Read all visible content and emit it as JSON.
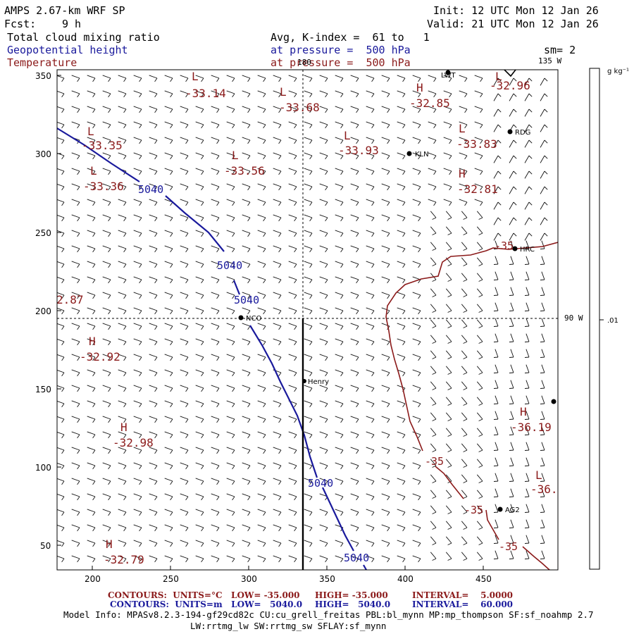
{
  "header": {
    "model": "AMPS 2.67-km WRF SP",
    "forecast_label": "Fcst:",
    "forecast_value": "9 h",
    "init": "Init: 12 UTC Mon 12 Jan 26",
    "valid": "Valid: 21 UTC Mon 12 Jan 26",
    "field1": "Total cloud mixing ratio",
    "field2": "Geopotential height",
    "field3": "Temperature",
    "avg_line": "Avg, K-index =  61 to   1",
    "pressure1": "at pressure =  500 hPa",
    "pressure2": "at pressure =  500 hPa",
    "sm": "sm= 2"
  },
  "map": {
    "y_ticks": [
      "350",
      "300",
      "250",
      "200",
      "150",
      "100",
      "50"
    ],
    "x_ticks": [
      "200",
      "250",
      "300",
      "350",
      "400",
      "450"
    ],
    "lon_180": "180",
    "lon_135w": "135 W",
    "lon_90w": "90 W",
    "colorbar_unit": "g kg⁻¹",
    "colorbar_tick": ".01",
    "stations": [
      {
        "name": "LWT"
      },
      {
        "name": "RDG"
      },
      {
        "name": "KLN"
      },
      {
        "name": "HRC"
      },
      {
        "name": "NCO"
      },
      {
        "name": "Henry"
      },
      {
        "name": "AG2"
      },
      {
        "name": ""
      }
    ],
    "temp_labels": [
      {
        "letter": "L",
        "value": "-33.14"
      },
      {
        "letter": "L",
        "value": "-33.68"
      },
      {
        "letter": "H",
        "value": "-32.85"
      },
      {
        "letter": "L",
        "value": "-32.96"
      },
      {
        "letter": "L",
        "value": "-33.35"
      },
      {
        "letter": "L",
        "value": "-33.56"
      },
      {
        "letter": "L",
        "value": "-33.93"
      },
      {
        "letter": "L",
        "value": "-33.83"
      },
      {
        "letter": "H",
        "value": "-32.81"
      },
      {
        "letter": "L",
        "value": "-33.36"
      },
      {
        "letter": "",
        "value": "2.87"
      },
      {
        "letter": "H",
        "value": "-32.92"
      },
      {
        "letter": "H",
        "value": "-32.98"
      },
      {
        "letter": "H",
        "value": "-36.19"
      },
      {
        "letter": "L",
        "value": "-36."
      },
      {
        "letter": "H",
        "value": "-32.79"
      }
    ],
    "temp_contour_labels": [
      "-35",
      "-35",
      "-35",
      "-35"
    ],
    "height_contour_labels": [
      "5040",
      "5040",
      "5040",
      "5040",
      "5040"
    ]
  },
  "footer": {
    "row1_a": "CONTOURS:  UNITS=°C   LOW= -35.000",
    "row1_b": "HIGH= -35.000",
    "row1_c": "INTERVAL=    5.0000",
    "row2_a": "CONTOURS:  UNITS=m   LOW=   5040.0",
    "row2_b": "HIGH=   5040.0",
    "row2_c": "INTERVAL=    60.000",
    "info1": "Model Info: MPASv8.2.3-194-gf29cd82c CU:cu_grell_freitas PBL:bl_mynn MP:mp_thompson SF:sf_noahmp 2.7",
    "info2": "LW:rrtmg_lw SW:rrtmg_sw SFLAY:sf_mynn"
  },
  "colors": {
    "temperature": "#8b1a1a",
    "height": "#1a1a9c",
    "frame": "#000000"
  }
}
